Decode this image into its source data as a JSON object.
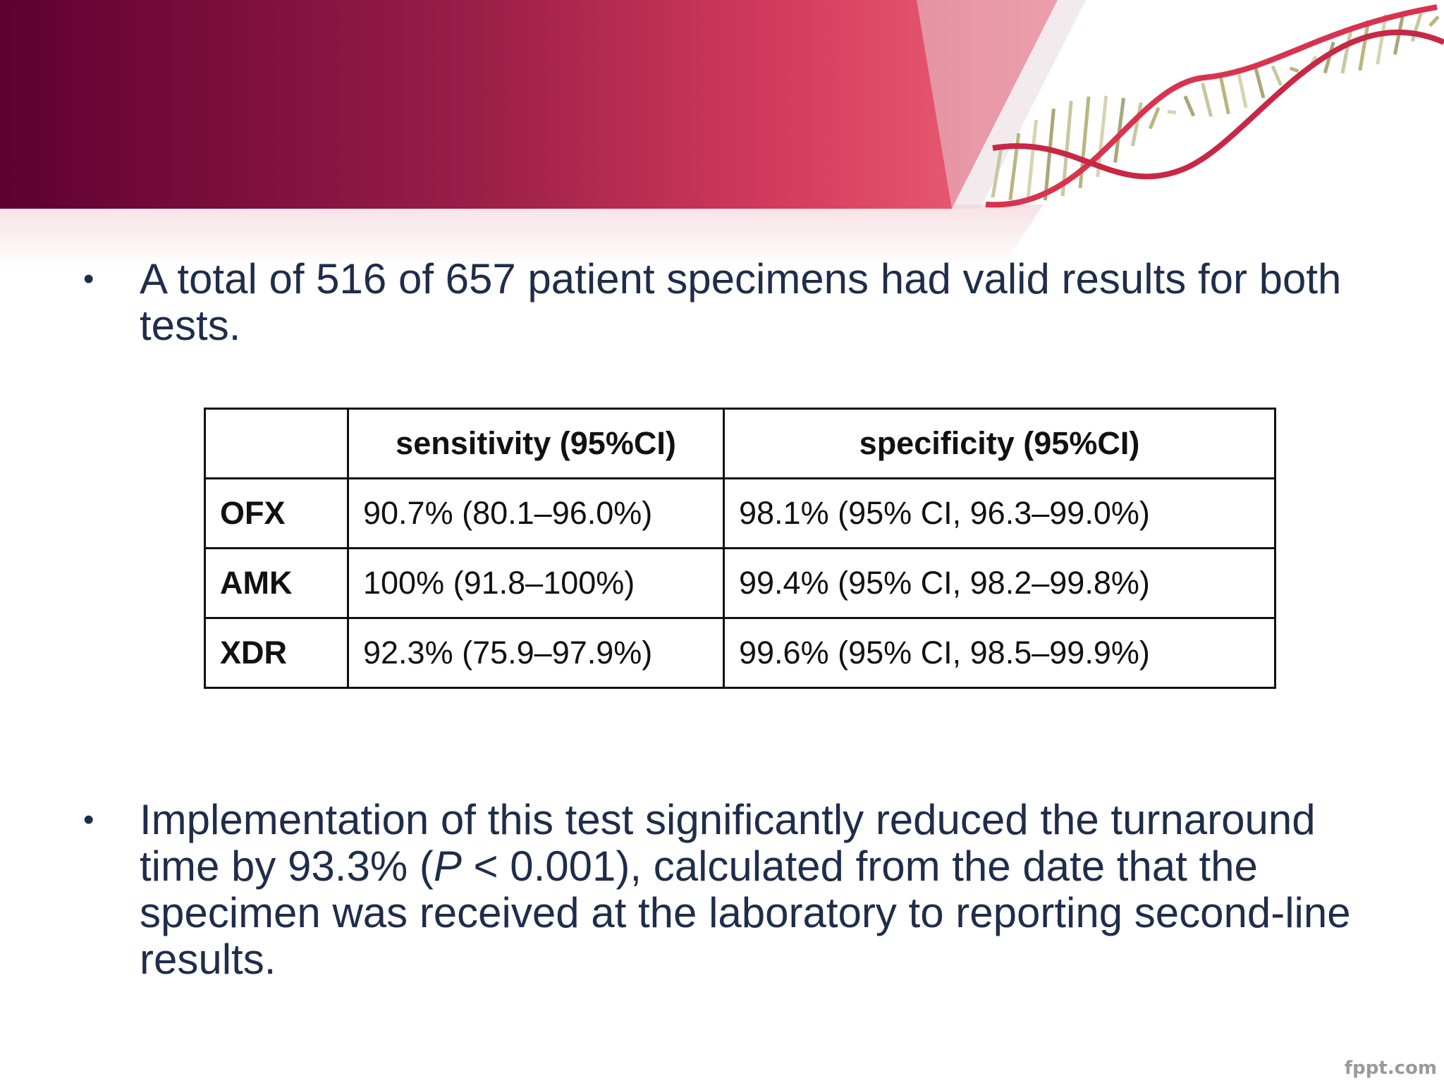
{
  "colors": {
    "banner_dark": "#5e0030",
    "banner_mid": "#b3264e",
    "banner_light": "#e8506a",
    "text": "#1f2d4a"
  },
  "bullets": [
    {
      "text": "A total of 516 of 657 patient specimens had valid results for both tests."
    }
  ],
  "table": {
    "headers": [
      "",
      "sensitivity (95%CI)",
      "specificity (95%CI)"
    ],
    "rows": [
      {
        "label": "OFX",
        "sensitivity": "90.7% (80.1–96.0%)",
        "specificity": "98.1% (95% CI, 96.3–99.0%)"
      },
      {
        "label": "AMK",
        "sensitivity": "100% (91.8–100%)",
        "specificity": "99.4% (95% CI, 98.2–99.8%)"
      },
      {
        "label": "XDR",
        "sensitivity": "92.3% (75.9–97.9%)",
        "specificity": "99.6% (95% CI, 98.5–99.9%)"
      }
    ]
  },
  "bullet2": {
    "before": "Implementation of this test significantly reduced the turnaround time by 93.3% (",
    "p": "P",
    "after": " < 0.001), calculated from the date that the specimen was received at the laboratory to reporting second-line results."
  },
  "watermark": "fppt.com",
  "icons": [
    "dna-helix-icon",
    "bullet-dot-icon"
  ]
}
